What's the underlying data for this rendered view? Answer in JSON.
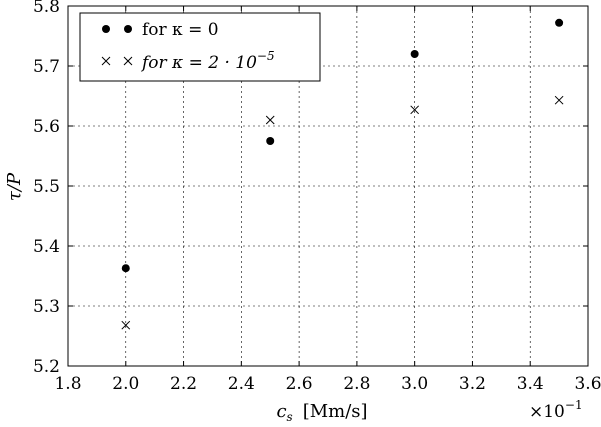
{
  "chart_data": {
    "type": "scatter",
    "xlabel_var": "c",
    "xlabel_sub": "s",
    "xlabel_unit": "[Mm/s]",
    "ylabel": "τ/P",
    "x_multiplier_base": "×10",
    "x_multiplier_exp": "−1",
    "xlim": [
      1.8,
      3.6
    ],
    "ylim": [
      5.2,
      5.8
    ],
    "xticks": [
      1.8,
      2.0,
      2.2,
      2.4,
      2.6,
      2.8,
      3.0,
      3.2,
      3.4,
      3.6
    ],
    "yticks": [
      5.2,
      5.3,
      5.4,
      5.5,
      5.6,
      5.7,
      5.8
    ],
    "x_tick_labels": [
      "1.8",
      "2.0",
      "2.2",
      "2.4",
      "2.6",
      "2.8",
      "3.0",
      "3.2",
      "3.4",
      "3.6"
    ],
    "y_tick_labels": [
      "5.2",
      "5.3",
      "5.4",
      "5.5",
      "5.6",
      "5.7",
      "5.8"
    ],
    "grid": true,
    "legend_position": "top-left",
    "series": [
      {
        "name": "for  κ = 0",
        "marker": "circle",
        "x": [
          2.0,
          2.5,
          3.0,
          3.5
        ],
        "y": [
          5.363,
          5.575,
          5.72,
          5.772
        ]
      },
      {
        "name": "for  κ = 2 · 10",
        "name_exp": "−5",
        "marker": "x",
        "x": [
          2.0,
          2.5,
          3.0,
          3.5
        ],
        "y": [
          5.268,
          5.61,
          5.627,
          5.643
        ]
      }
    ]
  }
}
